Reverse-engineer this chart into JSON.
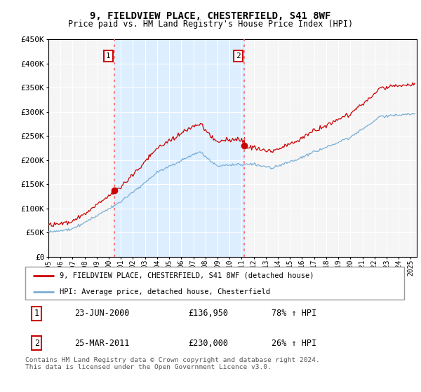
{
  "title": "9, FIELDVIEW PLACE, CHESTERFIELD, S41 8WF",
  "subtitle": "Price paid vs. HM Land Registry's House Price Index (HPI)",
  "ylabel_ticks": [
    "£0",
    "£50K",
    "£100K",
    "£150K",
    "£200K",
    "£250K",
    "£300K",
    "£350K",
    "£400K",
    "£450K"
  ],
  "ytick_values": [
    0,
    50000,
    100000,
    150000,
    200000,
    250000,
    300000,
    350000,
    400000,
    450000
  ],
  "ylim": [
    0,
    450000
  ],
  "xlim_start": 1995.0,
  "xlim_end": 2025.5,
  "red_line_color": "#cc0000",
  "blue_line_color": "#7aaed6",
  "shaded_color": "#ddeeff",
  "marker1_date": 2000.47,
  "marker1_value": 136950,
  "marker2_date": 2011.22,
  "marker2_value": 230000,
  "vline_color": "#ff6666",
  "legend_label_red": "9, FIELDVIEW PLACE, CHESTERFIELD, S41 8WF (detached house)",
  "legend_label_blue": "HPI: Average price, detached house, Chesterfield",
  "table_rows": [
    {
      "num": "1",
      "date": "23-JUN-2000",
      "price": "£136,950",
      "hpi": "78% ↑ HPI"
    },
    {
      "num": "2",
      "date": "25-MAR-2011",
      "price": "£230,000",
      "hpi": "26% ↑ HPI"
    }
  ],
  "footer": "Contains HM Land Registry data © Crown copyright and database right 2024.\nThis data is licensed under the Open Government Licence v3.0.",
  "background_color": "#ffffff",
  "plot_bg_color": "#f5f5f5"
}
